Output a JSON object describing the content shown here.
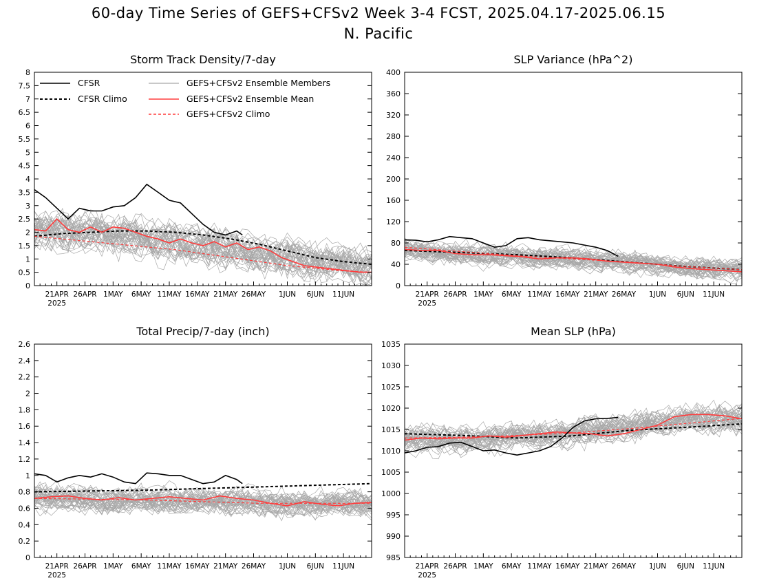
{
  "title_line1": "60-day Time Series of GEFS+CFSv2 Week 3-4 FCST, 2025.04.17-2025.06.15",
  "title_line2": "N. Pacific",
  "x_axis": {
    "ticks": [
      "21APR",
      "26APR",
      "1MAY",
      "6MAY",
      "11MAY",
      "16MAY",
      "21MAY",
      "26MAY",
      "1JUN",
      "6JUN",
      "11JUN"
    ],
    "year_label": "2025"
  },
  "legend": {
    "cfsr": "CFSR",
    "cfsr_climo": "CFSR Climo",
    "members": "GEFS+CFSv2 Ensemble Members",
    "ens_mean": "GEFS+CFSv2 Ensemble Mean",
    "model_climo": "GEFS+CFSv2 Climo"
  },
  "colors": {
    "cfsr": "#000000",
    "cfsr_climo": "#000000",
    "members": "#a8a8a8",
    "ens_mean": "#ff3c3c",
    "model_climo": "#ff3c3c"
  },
  "chart_data": [
    {
      "type": "line",
      "title": "Storm Track Density/7-day",
      "ylim": [
        0,
        8
      ],
      "y_ticks": [
        "0",
        "0.5",
        "1",
        "1.5",
        "2",
        "2.5",
        "3",
        "3.5",
        "4",
        "4.5",
        "5",
        "5.5",
        "6",
        "6.5",
        "7",
        "7.5",
        "8"
      ],
      "x_range_days": [
        0,
        60
      ],
      "series": [
        {
          "name": "CFSR",
          "x": [
            0,
            2,
            4,
            6,
            8,
            10,
            12,
            14,
            16,
            18,
            20,
            22,
            24,
            26,
            28,
            30,
            32,
            34,
            36,
            37
          ],
          "values": [
            3.6,
            3.3,
            2.9,
            2.5,
            2.9,
            2.8,
            2.8,
            2.95,
            3.0,
            3.3,
            3.8,
            3.5,
            3.2,
            3.1,
            2.7,
            2.3,
            2.0,
            1.9,
            2.05,
            1.9
          ]
        },
        {
          "name": "CFSR Climo",
          "x": [
            0,
            5,
            10,
            15,
            20,
            25,
            30,
            35,
            40,
            45,
            50,
            55,
            60
          ],
          "values": [
            1.85,
            1.95,
            2.0,
            2.05,
            2.05,
            2.0,
            1.9,
            1.75,
            1.55,
            1.3,
            1.05,
            0.9,
            0.8
          ]
        },
        {
          "name": "GEFS+CFSv2 Ensemble Mean",
          "x": [
            0,
            2,
            4,
            6,
            8,
            10,
            12,
            14,
            16,
            18,
            20,
            22,
            24,
            26,
            28,
            30,
            32,
            34,
            36,
            38,
            40,
            42,
            44,
            46,
            48,
            50,
            52,
            54,
            56,
            58,
            60
          ],
          "values": [
            2.1,
            2.05,
            2.5,
            2.1,
            2.0,
            2.2,
            2.0,
            2.2,
            2.15,
            2.0,
            1.85,
            1.75,
            1.6,
            1.75,
            1.6,
            1.5,
            1.65,
            1.45,
            1.6,
            1.35,
            1.45,
            1.3,
            1.05,
            0.9,
            0.75,
            0.7,
            0.65,
            0.6,
            0.55,
            0.5,
            0.5
          ]
        },
        {
          "name": "GEFS+CFSv2 Climo",
          "x": [
            0,
            5,
            10,
            15,
            20,
            25,
            30,
            35,
            40,
            45,
            50,
            55,
            60
          ],
          "values": [
            1.85,
            1.75,
            1.65,
            1.55,
            1.45,
            1.35,
            1.2,
            1.05,
            0.9,
            0.75,
            0.65,
            0.55,
            0.5
          ]
        }
      ],
      "members_band": {
        "center": [
          2.1,
          2.0,
          1.9,
          1.6,
          1.35,
          1.05,
          0.85,
          0.65
        ],
        "spread": 1.0,
        "count": 40
      }
    },
    {
      "type": "line",
      "title": "SLP Variance (hPa^2)",
      "ylim": [
        0,
        400
      ],
      "y_ticks": [
        "0",
        "40",
        "80",
        "120",
        "160",
        "200",
        "240",
        "280",
        "320",
        "360",
        "400"
      ],
      "x_range_days": [
        0,
        60
      ],
      "series": [
        {
          "name": "CFSR",
          "x": [
            0,
            2,
            4,
            6,
            8,
            10,
            12,
            14,
            16,
            18,
            20,
            22,
            24,
            26,
            28,
            30,
            32,
            34,
            36,
            38
          ],
          "values": [
            86,
            85,
            82,
            86,
            92,
            90,
            88,
            80,
            72,
            75,
            88,
            90,
            86,
            84,
            82,
            80,
            76,
            72,
            66,
            55
          ]
        },
        {
          "name": "CFSR Climo",
          "x": [
            0,
            10,
            20,
            30,
            40,
            50,
            60
          ],
          "values": [
            66,
            62,
            58,
            52,
            44,
            36,
            30
          ]
        },
        {
          "name": "GEFS+CFSv2 Ensemble Mean",
          "x": [
            0,
            3,
            6,
            9,
            12,
            15,
            18,
            21,
            24,
            27,
            30,
            33,
            36,
            39,
            42,
            45,
            48,
            51,
            54,
            57,
            60
          ],
          "values": [
            68,
            66,
            66,
            60,
            58,
            58,
            56,
            54,
            50,
            52,
            52,
            50,
            46,
            44,
            42,
            40,
            35,
            32,
            30,
            28,
            26
          ]
        },
        {
          "name": "GEFS+CFSv2 Climo",
          "x": [
            0,
            10,
            20,
            30,
            40,
            50,
            60
          ],
          "values": [
            72,
            64,
            56,
            50,
            44,
            36,
            30
          ]
        }
      ],
      "members_band": {
        "center": [
          68,
          62,
          56,
          52,
          46,
          40,
          34,
          28
        ],
        "spread": 28,
        "count": 40
      }
    },
    {
      "type": "line",
      "title": "Total Precip/7-day (inch)",
      "ylim": [
        0,
        2.6
      ],
      "y_ticks": [
        "0",
        "0.2",
        "0.4",
        "0.6",
        "0.8",
        "1",
        "1.2",
        "1.4",
        "1.6",
        "1.8",
        "2",
        "2.2",
        "2.4",
        "2.6"
      ],
      "x_range_days": [
        0,
        60
      ],
      "series": [
        {
          "name": "CFSR",
          "x": [
            0,
            2,
            4,
            6,
            8,
            10,
            12,
            14,
            16,
            18,
            20,
            22,
            24,
            26,
            28,
            30,
            32,
            34,
            36,
            37
          ],
          "values": [
            1.02,
            1.0,
            0.92,
            0.97,
            1.0,
            0.98,
            1.02,
            0.98,
            0.92,
            0.9,
            1.03,
            1.02,
            1.0,
            1.0,
            0.95,
            0.9,
            0.92,
            1.0,
            0.95,
            0.9
          ]
        },
        {
          "name": "CFSR Climo",
          "x": [
            0,
            10,
            20,
            30,
            40,
            50,
            60
          ],
          "values": [
            0.8,
            0.81,
            0.82,
            0.84,
            0.86,
            0.88,
            0.9
          ]
        },
        {
          "name": "GEFS+CFSv2 Ensemble Mean",
          "x": [
            0,
            3,
            6,
            9,
            12,
            15,
            18,
            21,
            24,
            27,
            30,
            33,
            36,
            39,
            42,
            45,
            48,
            51,
            54,
            57,
            60
          ],
          "values": [
            0.72,
            0.74,
            0.75,
            0.72,
            0.7,
            0.73,
            0.7,
            0.72,
            0.74,
            0.72,
            0.7,
            0.75,
            0.72,
            0.7,
            0.66,
            0.63,
            0.68,
            0.65,
            0.63,
            0.66,
            0.67
          ]
        },
        {
          "name": "GEFS+CFSv2 Climo",
          "x": [
            0,
            10,
            20,
            30,
            40,
            50,
            60
          ],
          "values": [
            0.72,
            0.71,
            0.7,
            0.68,
            0.66,
            0.66,
            0.66
          ]
        }
      ],
      "members_band": {
        "center": [
          0.72,
          0.71,
          0.7,
          0.69,
          0.68,
          0.67,
          0.66,
          0.66
        ],
        "spread": 0.22,
        "count": 40
      }
    },
    {
      "type": "line",
      "title": "Mean SLP (hPa)",
      "ylim": [
        985,
        1035
      ],
      "y_ticks": [
        "985",
        "990",
        "995",
        "1000",
        "1005",
        "1010",
        "1015",
        "1020",
        "1025",
        "1030",
        "1035"
      ],
      "x_range_days": [
        0,
        60
      ],
      "series": [
        {
          "name": "CFSR",
          "x": [
            0,
            2,
            4,
            6,
            8,
            10,
            12,
            14,
            16,
            18,
            20,
            22,
            24,
            26,
            28,
            30,
            32,
            34,
            36,
            38
          ],
          "values": [
            1009.5,
            1010,
            1010.8,
            1011,
            1011.8,
            1012,
            1011,
            1010,
            1010.2,
            1009.5,
            1009,
            1009.5,
            1010,
            1011,
            1013,
            1015.5,
            1017,
            1017.5,
            1017.6,
            1017.8
          ]
        },
        {
          "name": "CFSR Climo",
          "x": [
            0,
            10,
            20,
            30,
            40,
            50,
            60
          ],
          "values": [
            1014,
            1013.6,
            1013,
            1013.5,
            1014.8,
            1015.5,
            1016.3
          ]
        },
        {
          "name": "GEFS+CFSv2 Ensemble Mean",
          "x": [
            0,
            3,
            6,
            9,
            12,
            15,
            18,
            21,
            24,
            27,
            30,
            33,
            36,
            39,
            42,
            45,
            48,
            51,
            54,
            57,
            60
          ],
          "values": [
            1012.5,
            1013,
            1012.8,
            1013,
            1013,
            1013.5,
            1013.2,
            1013.6,
            1014,
            1014.4,
            1014.2,
            1014,
            1013.5,
            1014,
            1015,
            1016,
            1018,
            1018.5,
            1018.5,
            1018.2,
            1017.5
          ]
        },
        {
          "name": "GEFS+CFSv2 Climo",
          "x": [
            0,
            10,
            20,
            30,
            40,
            50,
            60
          ],
          "values": [
            1013,
            1013.2,
            1013.6,
            1014.2,
            1015.2,
            1016.4,
            1017.6
          ]
        }
      ],
      "members_band": {
        "center": [
          1012.5,
          1012.8,
          1013.2,
          1013.8,
          1014.8,
          1016.2,
          1017.6,
          1017.4
        ],
        "spread": 4.5,
        "count": 40
      }
    }
  ]
}
